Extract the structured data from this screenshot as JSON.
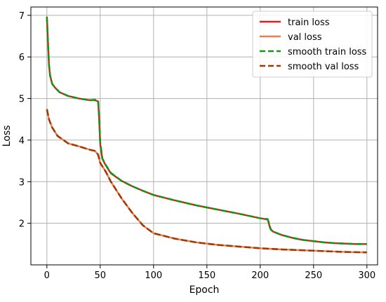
{
  "chart_data": {
    "type": "line",
    "title": "",
    "xlabel": "Epoch",
    "ylabel": "Loss",
    "xlim": [
      -15,
      310
    ],
    "ylim": [
      1.0,
      7.2
    ],
    "xticks": [
      0,
      50,
      100,
      150,
      200,
      250,
      300
    ],
    "yticks": [
      2,
      3,
      4,
      5,
      6,
      7
    ],
    "xtick_labels": [
      "0",
      "50",
      "100",
      "150",
      "200",
      "250",
      "300"
    ],
    "ytick_labels": [
      "2",
      "3",
      "4",
      "5",
      "6",
      "7"
    ],
    "grid": true,
    "legend_position": "top-right",
    "series": [
      {
        "name": "train loss",
        "color": "#e31a1c",
        "style": "solid",
        "x": [
          0,
          1,
          2,
          3,
          5,
          8,
          12,
          20,
          30,
          40,
          45,
          48,
          49,
          50,
          52,
          55,
          60,
          70,
          80,
          90,
          100,
          120,
          140,
          160,
          180,
          200,
          207,
          208,
          209,
          210,
          212,
          220,
          230,
          240,
          250,
          260,
          270,
          280,
          290,
          300
        ],
        "y": [
          6.97,
          6.4,
          5.8,
          5.55,
          5.35,
          5.25,
          5.15,
          5.06,
          5.0,
          4.96,
          4.96,
          4.93,
          4.5,
          3.9,
          3.55,
          3.4,
          3.2,
          3.02,
          2.89,
          2.78,
          2.68,
          2.55,
          2.43,
          2.33,
          2.23,
          2.12,
          2.09,
          2.0,
          1.9,
          1.84,
          1.8,
          1.72,
          1.65,
          1.6,
          1.57,
          1.54,
          1.52,
          1.51,
          1.5,
          1.5
        ]
      },
      {
        "name": "val loss",
        "color": "#f47c48",
        "style": "solid",
        "x": [
          0,
          2,
          5,
          10,
          20,
          30,
          40,
          45,
          48,
          50,
          55,
          60,
          70,
          80,
          90,
          100,
          120,
          140,
          160,
          180,
          200,
          220,
          240,
          260,
          280,
          300
        ],
        "y": [
          4.75,
          4.5,
          4.3,
          4.1,
          3.92,
          3.85,
          3.77,
          3.74,
          3.65,
          3.45,
          3.25,
          3.0,
          2.6,
          2.25,
          1.95,
          1.76,
          1.63,
          1.54,
          1.48,
          1.44,
          1.4,
          1.37,
          1.35,
          1.33,
          1.31,
          1.3
        ]
      },
      {
        "name": "smooth train loss",
        "color": "#159415",
        "style": "dashed",
        "x": [
          0,
          1,
          2,
          3,
          5,
          8,
          12,
          20,
          30,
          40,
          45,
          48,
          49,
          50,
          52,
          55,
          60,
          70,
          80,
          90,
          100,
          120,
          140,
          160,
          180,
          200,
          207,
          208,
          209,
          210,
          212,
          220,
          230,
          240,
          250,
          260,
          270,
          280,
          290,
          300
        ],
        "y": [
          6.95,
          6.35,
          5.82,
          5.55,
          5.35,
          5.25,
          5.15,
          5.06,
          5.0,
          4.96,
          4.97,
          4.95,
          4.55,
          3.95,
          3.56,
          3.41,
          3.21,
          3.02,
          2.89,
          2.78,
          2.68,
          2.55,
          2.43,
          2.33,
          2.23,
          2.12,
          2.1,
          2.02,
          1.92,
          1.85,
          1.8,
          1.72,
          1.65,
          1.6,
          1.57,
          1.54,
          1.52,
          1.51,
          1.5,
          1.5
        ]
      },
      {
        "name": "smooth val loss",
        "color": "#a03a05",
        "style": "dashed",
        "x": [
          0,
          2,
          5,
          10,
          20,
          30,
          40,
          45,
          48,
          50,
          55,
          60,
          70,
          80,
          90,
          100,
          120,
          140,
          160,
          180,
          200,
          220,
          240,
          260,
          280,
          300
        ],
        "y": [
          4.74,
          4.5,
          4.3,
          4.1,
          3.92,
          3.85,
          3.77,
          3.74,
          3.65,
          3.45,
          3.25,
          3.0,
          2.6,
          2.25,
          1.95,
          1.76,
          1.63,
          1.54,
          1.48,
          1.44,
          1.4,
          1.37,
          1.35,
          1.33,
          1.31,
          1.3
        ]
      }
    ]
  }
}
